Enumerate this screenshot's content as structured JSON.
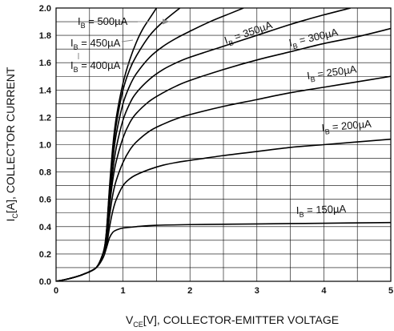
{
  "chart_data": {
    "type": "line",
    "xlabel_main": "V",
    "xlabel_sub": "CE",
    "xlabel_rest": "[V], COLLECTOR-EMITTER VOLTAGE",
    "ylabel_main": "I",
    "ylabel_sub": "C",
    "ylabel_rest": "[A], COLLECTOR CURRENT",
    "xlim": [
      0,
      5
    ],
    "ylim": [
      0,
      2.0
    ],
    "x_ticks": [
      "0",
      "1",
      "2",
      "3",
      "4",
      "5"
    ],
    "y_ticks": [
      "0.0",
      "0.2",
      "0.4",
      "0.6",
      "0.8",
      "1.0",
      "1.2",
      "1.4",
      "1.6",
      "1.8",
      "2.0"
    ],
    "grid": true,
    "series": [
      {
        "name": "500µA",
        "label_prefix": "I",
        "label_sub": "B",
        "label_rest": " = 500µA",
        "points": [
          [
            0,
            0
          ],
          [
            0.2,
            0.02
          ],
          [
            0.4,
            0.05
          ],
          [
            0.6,
            0.1
          ],
          [
            0.7,
            0.2
          ],
          [
            0.75,
            0.35
          ],
          [
            0.8,
            0.7
          ],
          [
            0.85,
            1.0
          ],
          [
            0.9,
            1.2
          ],
          [
            1.0,
            1.45
          ],
          [
            1.1,
            1.62
          ],
          [
            1.2,
            1.75
          ],
          [
            1.3,
            1.85
          ],
          [
            1.42,
            1.94
          ],
          [
            1.5,
            2.0
          ]
        ]
      },
      {
        "name": "450µA",
        "label_prefix": "I",
        "label_sub": "B",
        "label_rest": " = 450µA",
        "points": [
          [
            0,
            0
          ],
          [
            0.2,
            0.02
          ],
          [
            0.4,
            0.05
          ],
          [
            0.6,
            0.1
          ],
          [
            0.7,
            0.2
          ],
          [
            0.75,
            0.35
          ],
          [
            0.8,
            0.68
          ],
          [
            0.85,
            0.95
          ],
          [
            0.9,
            1.15
          ],
          [
            1.0,
            1.4
          ],
          [
            1.1,
            1.55
          ],
          [
            1.2,
            1.65
          ],
          [
            1.4,
            1.8
          ],
          [
            1.6,
            1.9
          ],
          [
            1.85,
            2.0
          ]
        ]
      },
      {
        "name": "400µA",
        "label_prefix": "I",
        "label_sub": "B",
        "label_rest": " = 400µA",
        "points": [
          [
            0,
            0
          ],
          [
            0.2,
            0.02
          ],
          [
            0.4,
            0.05
          ],
          [
            0.6,
            0.1
          ],
          [
            0.7,
            0.2
          ],
          [
            0.75,
            0.33
          ],
          [
            0.8,
            0.65
          ],
          [
            0.85,
            0.9
          ],
          [
            0.9,
            1.08
          ],
          [
            1.0,
            1.3
          ],
          [
            1.1,
            1.43
          ],
          [
            1.2,
            1.52
          ],
          [
            1.4,
            1.64
          ],
          [
            1.6,
            1.72
          ],
          [
            1.8,
            1.78
          ],
          [
            2.0,
            1.83
          ],
          [
            2.3,
            1.9
          ],
          [
            2.6,
            1.96
          ],
          [
            2.8,
            2.0
          ]
        ]
      },
      {
        "name": "350µA",
        "label_prefix": "I",
        "label_sub": "B",
        "label_rest": " = 350µA",
        "points": [
          [
            0,
            0
          ],
          [
            0.2,
            0.02
          ],
          [
            0.4,
            0.05
          ],
          [
            0.6,
            0.1
          ],
          [
            0.7,
            0.2
          ],
          [
            0.75,
            0.32
          ],
          [
            0.8,
            0.6
          ],
          [
            0.85,
            0.82
          ],
          [
            0.9,
            0.98
          ],
          [
            1.0,
            1.18
          ],
          [
            1.1,
            1.3
          ],
          [
            1.2,
            1.38
          ],
          [
            1.4,
            1.48
          ],
          [
            1.6,
            1.55
          ],
          [
            1.8,
            1.6
          ],
          [
            2.0,
            1.64
          ],
          [
            2.5,
            1.72
          ],
          [
            3.0,
            1.8
          ],
          [
            3.5,
            1.88
          ],
          [
            4.0,
            1.95
          ],
          [
            4.4,
            2.0
          ]
        ]
      },
      {
        "name": "300µA",
        "label_prefix": "I",
        "label_sub": "B",
        "label_rest": " = 300µA",
        "points": [
          [
            0,
            0
          ],
          [
            0.2,
            0.02
          ],
          [
            0.4,
            0.05
          ],
          [
            0.6,
            0.1
          ],
          [
            0.7,
            0.2
          ],
          [
            0.75,
            0.3
          ],
          [
            0.8,
            0.55
          ],
          [
            0.85,
            0.75
          ],
          [
            0.9,
            0.88
          ],
          [
            1.0,
            1.05
          ],
          [
            1.1,
            1.16
          ],
          [
            1.2,
            1.23
          ],
          [
            1.4,
            1.32
          ],
          [
            1.6,
            1.38
          ],
          [
            1.8,
            1.43
          ],
          [
            2.0,
            1.47
          ],
          [
            2.5,
            1.55
          ],
          [
            3.0,
            1.62
          ],
          [
            3.5,
            1.68
          ],
          [
            4.0,
            1.74
          ],
          [
            4.5,
            1.79
          ],
          [
            5.0,
            1.85
          ]
        ]
      },
      {
        "name": "250µA",
        "label_prefix": "I",
        "label_sub": "B",
        "label_rest": " = 250µA",
        "points": [
          [
            0,
            0
          ],
          [
            0.2,
            0.02
          ],
          [
            0.4,
            0.05
          ],
          [
            0.6,
            0.1
          ],
          [
            0.7,
            0.2
          ],
          [
            0.75,
            0.28
          ],
          [
            0.8,
            0.48
          ],
          [
            0.85,
            0.64
          ],
          [
            0.9,
            0.74
          ],
          [
            1.0,
            0.87
          ],
          [
            1.1,
            0.96
          ],
          [
            1.2,
            1.02
          ],
          [
            1.4,
            1.1
          ],
          [
            1.6,
            1.15
          ],
          [
            1.8,
            1.19
          ],
          [
            2.0,
            1.22
          ],
          [
            2.5,
            1.28
          ],
          [
            3.0,
            1.33
          ],
          [
            3.5,
            1.38
          ],
          [
            4.0,
            1.42
          ],
          [
            4.5,
            1.46
          ],
          [
            5.0,
            1.5
          ]
        ]
      },
      {
        "name": "200µA",
        "label_prefix": "I",
        "label_sub": "B",
        "label_rest": " = 200µA",
        "points": [
          [
            0,
            0
          ],
          [
            0.2,
            0.02
          ],
          [
            0.4,
            0.05
          ],
          [
            0.6,
            0.1
          ],
          [
            0.7,
            0.2
          ],
          [
            0.75,
            0.25
          ],
          [
            0.8,
            0.4
          ],
          [
            0.85,
            0.52
          ],
          [
            0.9,
            0.6
          ],
          [
            1.0,
            0.7
          ],
          [
            1.1,
            0.75
          ],
          [
            1.2,
            0.78
          ],
          [
            1.4,
            0.82
          ],
          [
            1.6,
            0.85
          ],
          [
            1.8,
            0.87
          ],
          [
            2.0,
            0.885
          ],
          [
            2.5,
            0.92
          ],
          [
            3.0,
            0.95
          ],
          [
            3.5,
            0.98
          ],
          [
            4.0,
            1.0
          ],
          [
            4.5,
            1.02
          ],
          [
            5.0,
            1.04
          ]
        ]
      },
      {
        "name": "150µA",
        "label_prefix": "I",
        "label_sub": "B",
        "label_rest": " = 150µA",
        "points": [
          [
            0,
            0
          ],
          [
            0.2,
            0.02
          ],
          [
            0.4,
            0.05
          ],
          [
            0.6,
            0.1
          ],
          [
            0.7,
            0.17
          ],
          [
            0.75,
            0.24
          ],
          [
            0.8,
            0.32
          ],
          [
            0.85,
            0.36
          ],
          [
            0.9,
            0.375
          ],
          [
            1.0,
            0.39
          ],
          [
            1.2,
            0.4
          ],
          [
            1.5,
            0.41
          ],
          [
            2.0,
            0.415
          ],
          [
            3.0,
            0.42
          ],
          [
            4.0,
            0.425
          ],
          [
            5.0,
            0.43
          ]
        ]
      }
    ]
  }
}
